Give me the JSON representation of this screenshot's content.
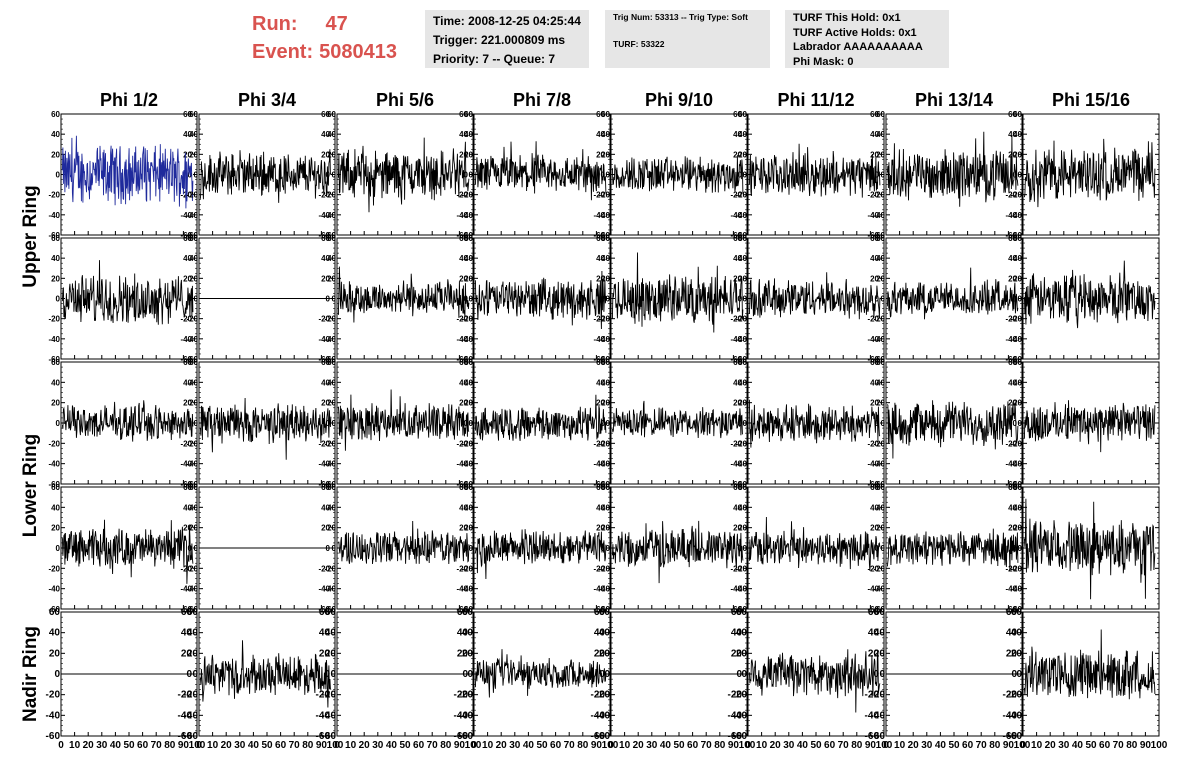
{
  "header": {
    "run_label": "Run:",
    "run_value": "47",
    "event_label": "Event:",
    "event_value": "5080413",
    "info_time": {
      "time": "Time: 2008-12-25 04:25:44",
      "trigger": "Trigger: 221.000809 ms",
      "priority": "Priority: 7 -- Queue: 7"
    },
    "info_trig": {
      "trig": "Trig Num: 53313 -- Trig Type: Soft",
      "turf": "TURF: 53322"
    },
    "info_turf": {
      "hold": "TURF This Hold: 0x1",
      "active": "TURF Active Holds: 0x1",
      "labrador": "Labrador AAAAAAAAAA",
      "phimask": "Phi Mask: 0"
    }
  },
  "chart_data": {
    "type": "line",
    "columns": [
      "Phi 1/2",
      "Phi 3/4",
      "Phi 5/6",
      "Phi 7/8",
      "Phi 9/10",
      "Phi 11/12",
      "Phi 13/14",
      "Phi 15/16"
    ],
    "ring_labels": [
      "Upper Ring",
      "Lower Ring",
      "Nadir Ring"
    ],
    "x_ticks": [
      0,
      10,
      20,
      30,
      40,
      50,
      60,
      70,
      80,
      90,
      100
    ],
    "x_tick_labels": [
      "0",
      "10",
      "20",
      "30",
      "40",
      "50",
      "60",
      "70",
      "80",
      "90",
      "100"
    ],
    "ylim": [
      -60,
      60
    ],
    "y_ticks": [
      -60,
      -40,
      -20,
      0,
      20,
      40,
      60
    ],
    "y_tick_labels": [
      "-60",
      "-40",
      "-20",
      "0",
      "20",
      "40",
      "60"
    ],
    "xlim": [
      0,
      100
    ],
    "x_data_range": [
      1,
      97
    ],
    "rows": 5,
    "trace_colors": {
      "normal": "#000000",
      "highlight": "#1f2a9c"
    },
    "highlighted_panel": {
      "row": 0,
      "col": 0
    },
    "panel_amplitude": [
      [
        24,
        18,
        20,
        16,
        15,
        17,
        20,
        22
      ],
      [
        20,
        0,
        14,
        16,
        20,
        16,
        14,
        20
      ],
      [
        14,
        16,
        15,
        14,
        12,
        15,
        18,
        16
      ],
      [
        16,
        0,
        14,
        14,
        16,
        14,
        14,
        22
      ],
      [
        0,
        16,
        0,
        12,
        0,
        18,
        0,
        20
      ]
    ]
  }
}
